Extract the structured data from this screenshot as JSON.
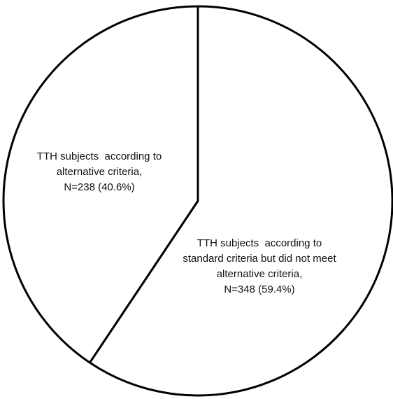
{
  "chart_data": {
    "type": "pie",
    "slices": [
      {
        "value": 348,
        "percent": 59.4,
        "label_lines": [
          "TTH subjects  according to",
          "standard criteria but did not meet",
          "alternative criteria,",
          "N=348 (59.4%)"
        ]
      },
      {
        "value": 238,
        "percent": 40.6,
        "label_lines": [
          "TTH subjects  according to",
          "alternative criteria,",
          "N=238 (40.6%)"
        ]
      }
    ],
    "colors": {
      "fill": "#ffffff",
      "stroke": "#000000",
      "text": "#111111"
    },
    "start": "12 o'clock",
    "direction": "clockwise"
  }
}
